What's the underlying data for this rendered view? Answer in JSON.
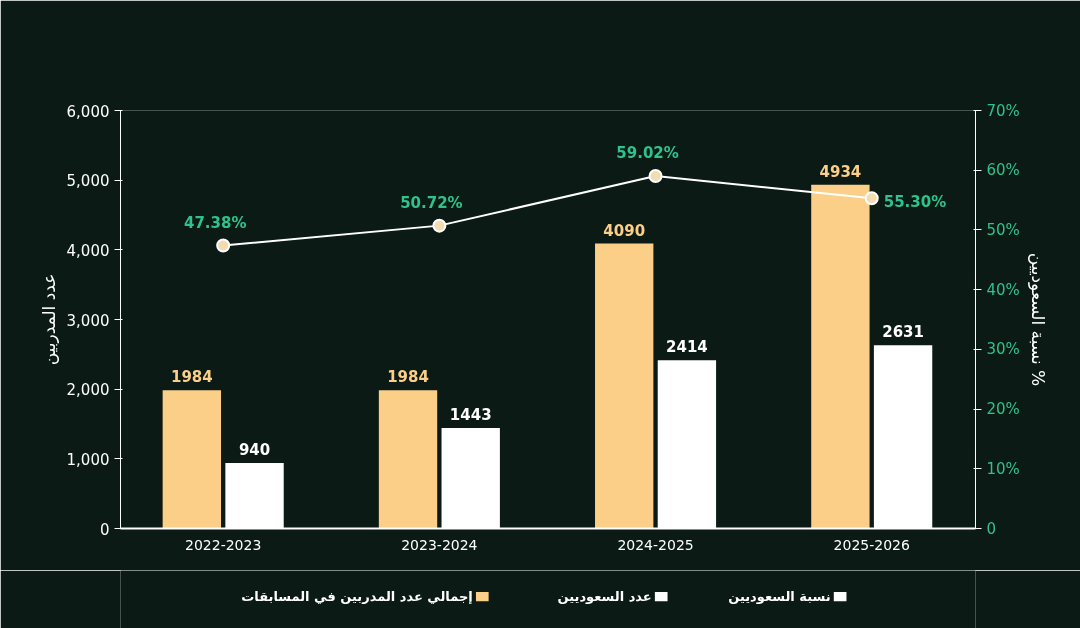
{
  "chart_data": {
    "type": "bar",
    "ylabel": "عدد المدربين",
    "y2label": "نسبة السعوديين %",
    "categories": [
      "2022-2023",
      "2023-2024",
      "2024-2025",
      "2025-2026"
    ],
    "series": [
      {
        "name": "إجمالي عدد المدربين في المسابقات",
        "color": "#fbcf88",
        "values": [
          1984,
          1984,
          4090,
          4934
        ],
        "value_labels": [
          "1984",
          "1984",
          "4090",
          "4934"
        ]
      },
      {
        "name": "عدد السعوديين",
        "color": "#ffffff",
        "values": [
          940,
          1443,
          2414,
          2631
        ],
        "value_labels": [
          "940",
          "1443",
          "2414",
          "2631"
        ]
      },
      {
        "name": "نسبة السعوديين",
        "type": "line",
        "axis": "y2",
        "color": "#ffffff",
        "values": [
          47.38,
          50.72,
          59.02,
          55.3
        ],
        "value_labels": [
          "47.38%",
          "50.72%",
          "59.02%",
          "55.30%"
        ]
      }
    ],
    "ylim": [
      0,
      6000
    ],
    "yticks": [
      0,
      {
        "value": 1000,
        "label": "1,000"
      },
      {
        "value": 2000,
        "label": "2,000"
      },
      {
        "value": 3000,
        "label": "3,000"
      },
      {
        "value": 4000,
        "label": "4,000"
      },
      {
        "value": 5000,
        "label": "5,000"
      },
      {
        "value": 6000,
        "label": "6,000"
      }
    ],
    "y2lim": [
      0,
      70
    ],
    "y2ticks": [
      0,
      {
        "value": 10,
        "label": "10%"
      },
      {
        "value": 20,
        "label": "20%"
      },
      {
        "value": 30,
        "label": "30%"
      },
      {
        "value": 40,
        "label": "40%"
      },
      {
        "value": 50,
        "label": "50%"
      },
      {
        "value": 60,
        "label": "60%"
      },
      {
        "value": 70,
        "label": "70%"
      }
    ],
    "marker": "circle",
    "grid": false,
    "legend": "bottom"
  }
}
